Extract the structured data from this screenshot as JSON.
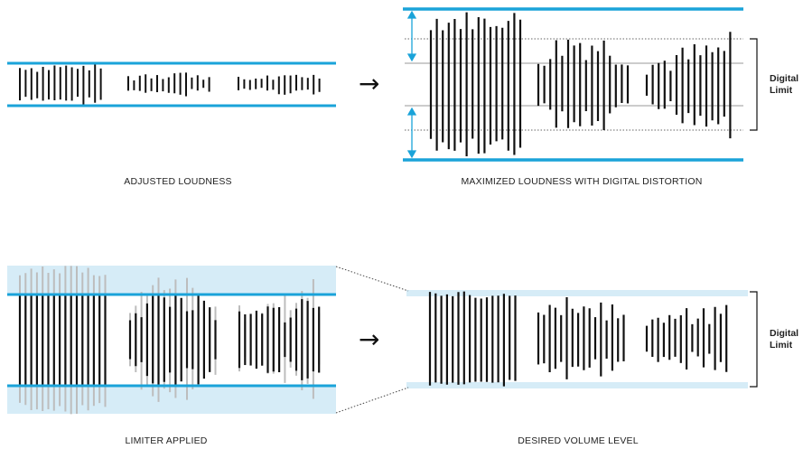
{
  "colors": {
    "rail": "#1aa3d9",
    "band": "#d6ecf7",
    "wave": "#111111",
    "ghost": "#bdbdbd",
    "mid": "#9a9a9a"
  },
  "panels": {
    "adjusted": {
      "caption": "ADJUSTED LOUDNESS"
    },
    "maximized": {
      "caption": "MAXIMIZED LOUDNESS WITH DIGITAL DISTORTION",
      "side_label_line1": "Digital",
      "side_label_line2": "Limit"
    },
    "limiter": {
      "caption": "LIMITER APPLIED"
    },
    "desired": {
      "caption": "DESIRED VOLUME LEVEL",
      "side_label_line1": "Digital",
      "side_label_line2": "Limit"
    }
  },
  "arrow_glyph": "→",
  "arrow_icon": "right-arrow-icon"
}
